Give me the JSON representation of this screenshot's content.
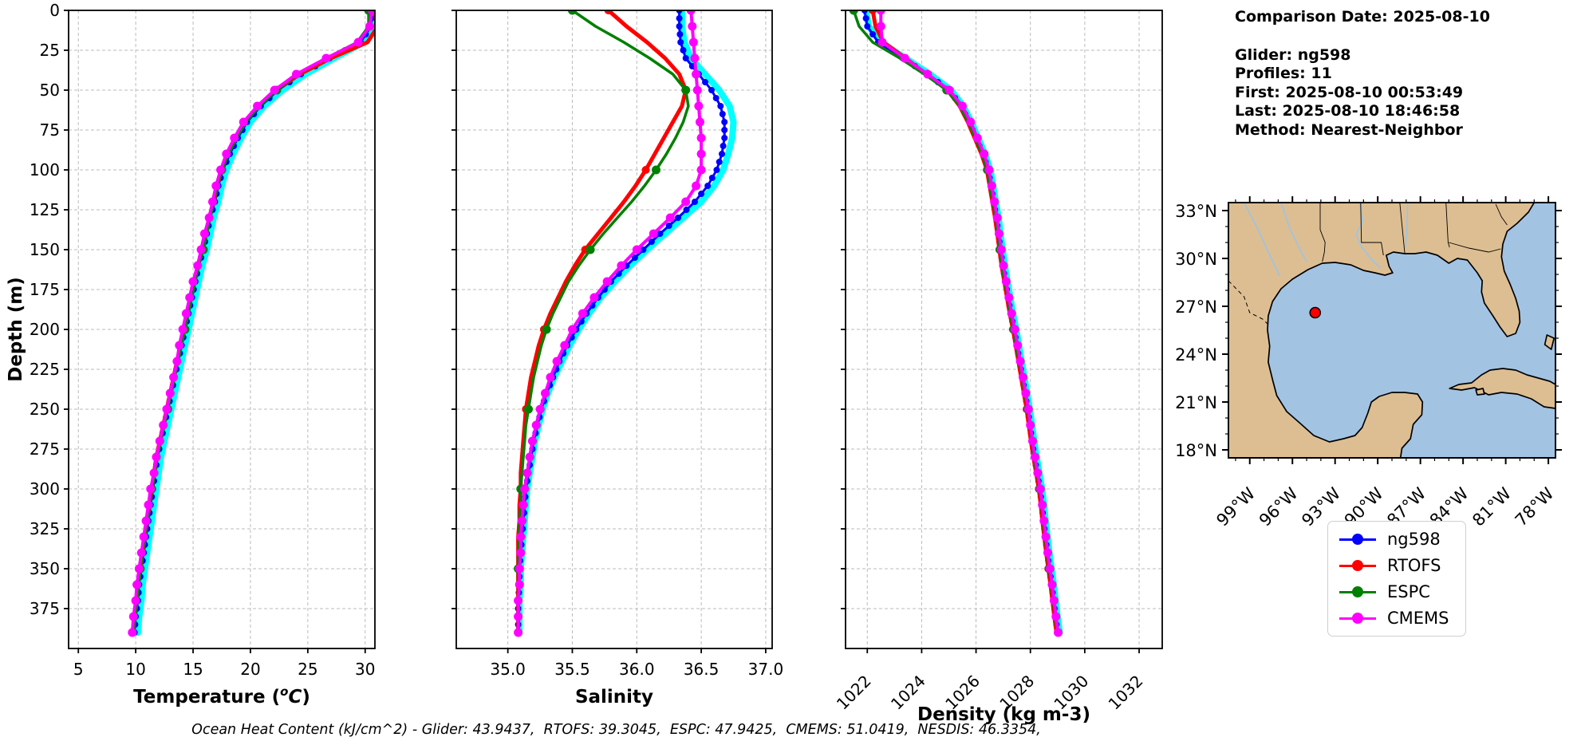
{
  "info_panel": {
    "date_line": "Comparison Date: 2025-08-10",
    "lines": [
      "Glider: ng598",
      "Profiles: 11",
      "First: 2025-08-10 00:53:49",
      "Last: 2025-08-10 18:46:58",
      "Method: Nearest-Neighbor"
    ]
  },
  "footer": {
    "ohc_line": "Ocean Heat Content (kJ/cm^2) - Glider: 43.9437,  RTOFS: 39.3045,  ESPC: 47.9425,  CMEMS: 51.0419,  NESDIS: 46.3354,"
  },
  "legend": {
    "items": [
      {
        "label": "ng598",
        "color": "#0000ff"
      },
      {
        "label": "RTOFS",
        "color": "#ff0000"
      },
      {
        "label": "ESPC",
        "color": "#008000"
      },
      {
        "label": "CMEMS",
        "color": "#ff00ff"
      }
    ]
  },
  "map": {
    "land_color": "#DDBE92",
    "ocean_color": "#A3C3E3",
    "coast_color": "#000000",
    "river_color": "#99C4E8",
    "extent": {
      "lon_min": -100.5,
      "lon_max": -77.5,
      "lat_min": 17.5,
      "lat_max": 33.5
    },
    "lat_ticks": [
      {
        "value": 33,
        "label": "33°N"
      },
      {
        "value": 30,
        "label": "30°N"
      },
      {
        "value": 27,
        "label": "27°N"
      },
      {
        "value": 24,
        "label": "24°N"
      },
      {
        "value": 21,
        "label": "21°N"
      },
      {
        "value": 18,
        "label": "18°N"
      }
    ],
    "lon_ticks": [
      {
        "value": -99,
        "label": "99°W"
      },
      {
        "value": -96,
        "label": "96°W"
      },
      {
        "value": -93,
        "label": "93°W"
      },
      {
        "value": -90,
        "label": "90°W"
      },
      {
        "value": -87,
        "label": "87°W"
      },
      {
        "value": -84,
        "label": "84°W"
      },
      {
        "value": -81,
        "label": "81°W"
      },
      {
        "value": -78,
        "label": "78°W"
      }
    ],
    "marker": {
      "lon": -94.4,
      "lat": 26.6,
      "color": "#ff0000",
      "edge_color": "#000000"
    }
  },
  "chart_data": {
    "type": "line",
    "orientation": "vertical-profile",
    "ylabel": "Depth (m)",
    "ylim": [
      0,
      400
    ],
    "yticks": [
      0,
      25,
      50,
      75,
      100,
      125,
      150,
      175,
      200,
      225,
      250,
      275,
      300,
      325,
      350,
      375
    ],
    "grid": "dashed",
    "depths": [
      0,
      10,
      20,
      30,
      40,
      50,
      60,
      70,
      80,
      90,
      100,
      110,
      120,
      130,
      140,
      150,
      160,
      170,
      180,
      190,
      200,
      210,
      220,
      230,
      240,
      250,
      260,
      270,
      280,
      290,
      300,
      310,
      320,
      330,
      340,
      350,
      360,
      370,
      380,
      390
    ],
    "panels": [
      {
        "name": "temperature",
        "xlabel": "Temperature (C)",
        "xlabel_parts": {
          "pre": "Temperature (",
          "sup": "o",
          "it": "C",
          "post": ")"
        },
        "xlim": [
          4.15,
          30.85
        ],
        "xticks": [
          5,
          10,
          15,
          20,
          25,
          30
        ],
        "xtick_labels": [
          "5",
          "10",
          "15",
          "20",
          "25",
          "30"
        ],
        "rotate_xticklabels": false,
        "series": [
          {
            "name": "glider-profiles",
            "color": "#00ffff",
            "values": [
              30.7,
              30.6,
              29.9,
              27.3,
              24.8,
              22.8,
              21.2,
              20.0,
              19.2,
              18.5,
              17.9,
              17.5,
              17.2,
              16.8,
              16.5,
              16.2,
              15.8,
              15.5,
              15.2,
              14.9,
              14.6,
              14.3,
              14.0,
              13.7,
              13.4,
              13.1,
              12.8,
              12.5,
              12.2,
              12.0,
              11.8,
              11.6,
              11.4,
              11.2,
              11.0,
              10.8,
              10.6,
              10.5,
              10.3,
              10.2
            ]
          },
          {
            "name": "ng598",
            "color": "#0000ff",
            "values": [
              30.6,
              30.5,
              29.6,
              26.9,
              24.4,
              22.4,
              20.9,
              19.7,
              18.9,
              18.2,
              17.6,
              17.2,
              16.9,
              16.5,
              16.2,
              15.9,
              15.5,
              15.2,
              14.9,
              14.6,
              14.3,
              14.0,
              13.7,
              13.4,
              13.1,
              12.8,
              12.5,
              12.2,
              11.9,
              11.7,
              11.5,
              11.3,
              11.1,
              10.9,
              10.7,
              10.5,
              10.3,
              10.2,
              10.0,
              9.9
            ]
          },
          {
            "name": "RTOFS",
            "color": "#ff0000",
            "values": [
              30.8,
              31.1,
              30.2,
              27.0,
              24.3,
              22.2,
              20.7,
              19.5,
              18.7,
              18.0,
              17.5,
              17.1,
              16.8,
              16.4,
              16.1,
              15.8,
              15.4,
              15.1,
              14.8,
              14.5,
              14.2,
              13.9,
              13.6,
              13.3,
              13.0,
              12.7,
              12.4,
              12.1,
              11.8,
              11.6,
              11.4,
              11.2,
              11.0,
              10.8,
              10.6,
              10.4,
              10.2,
              10.1,
              9.9,
              9.8
            ]
          },
          {
            "name": "ESPC",
            "color": "#008000",
            "values": [
              30.3,
              30.3,
              29.3,
              26.6,
              24.1,
              22.3,
              20.8,
              19.6,
              18.8,
              18.1,
              17.5,
              17.1,
              16.8,
              16.5,
              16.2,
              15.9,
              15.5,
              15.2,
              14.9,
              14.6,
              14.3,
              14.0,
              13.7,
              13.4,
              13.1,
              12.8,
              12.5,
              12.2,
              11.9,
              11.7,
              11.4,
              11.2,
              11.0,
              10.8,
              10.6,
              10.4,
              10.3,
              10.1,
              10.0,
              9.8
            ]
          },
          {
            "name": "CMEMS",
            "color": "#ff00ff",
            "values": [
              30.6,
              30.4,
              29.4,
              26.6,
              24.0,
              22.1,
              20.6,
              19.4,
              18.6,
              17.9,
              17.4,
              17.0,
              16.7,
              16.4,
              16.0,
              15.7,
              15.4,
              15.0,
              14.7,
              14.4,
              14.1,
              13.8,
              13.6,
              13.3,
              13.0,
              12.7,
              12.4,
              12.1,
              11.8,
              11.6,
              11.3,
              11.1,
              10.9,
              10.7,
              10.5,
              10.3,
              10.1,
              10.0,
              9.8,
              9.7
            ]
          }
        ]
      },
      {
        "name": "salinity",
        "xlabel": "Salinity",
        "xlim": [
          34.6,
          37.05
        ],
        "xticks": [
          35.0,
          35.5,
          36.0,
          36.5,
          37.0
        ],
        "xtick_labels": [
          "35.0",
          "35.5",
          "36.0",
          "36.5",
          "37.0"
        ],
        "rotate_xticklabels": false,
        "series": [
          {
            "name": "glider-profiles",
            "color": "#00ffff",
            "values": [
              36.35,
              36.35,
              36.37,
              36.42,
              36.53,
              36.64,
              36.72,
              36.75,
              36.74,
              36.71,
              36.67,
              36.6,
              36.5,
              36.36,
              36.22,
              36.08,
              35.95,
              35.83,
              35.72,
              35.63,
              35.55,
              35.48,
              35.42,
              35.36,
              35.31,
              35.27,
              35.24,
              35.21,
              35.19,
              35.17,
              35.15,
              35.14,
              35.13,
              35.12,
              35.11,
              35.1,
              35.1,
              35.09,
              35.09,
              35.09
            ]
          },
          {
            "name": "ng598",
            "color": "#0000ff",
            "values": [
              36.33,
              36.33,
              36.34,
              36.38,
              36.48,
              36.58,
              36.65,
              36.68,
              36.68,
              36.66,
              36.62,
              36.55,
              36.45,
              36.32,
              36.18,
              36.05,
              35.92,
              35.8,
              35.7,
              35.61,
              35.53,
              35.46,
              35.4,
              35.35,
              35.3,
              35.26,
              35.23,
              35.2,
              35.18,
              35.16,
              35.14,
              35.13,
              35.12,
              35.11,
              35.1,
              35.09,
              35.09,
              35.08,
              35.08,
              35.08
            ]
          },
          {
            "name": "RTOFS",
            "color": "#ff0000",
            "values": [
              35.78,
              35.92,
              36.08,
              36.22,
              36.33,
              36.38,
              36.35,
              36.28,
              36.21,
              36.14,
              36.07,
              35.99,
              35.9,
              35.8,
              35.7,
              35.6,
              35.52,
              35.45,
              35.39,
              35.33,
              35.28,
              35.24,
              35.21,
              35.18,
              35.16,
              35.14,
              35.13,
              35.12,
              35.11,
              35.1,
              35.1,
              35.09,
              35.09,
              35.08,
              35.08,
              35.08,
              35.08,
              35.08,
              35.08,
              35.08
            ]
          },
          {
            "name": "ESPC",
            "color": "#008000",
            "values": [
              35.5,
              35.68,
              35.9,
              36.1,
              36.28,
              36.38,
              36.4,
              36.36,
              36.3,
              36.23,
              36.15,
              36.06,
              35.96,
              35.85,
              35.74,
              35.64,
              35.55,
              35.47,
              35.41,
              35.35,
              35.3,
              35.26,
              35.23,
              35.2,
              35.18,
              35.16,
              35.14,
              35.13,
              35.12,
              35.11,
              35.1,
              35.1,
              35.09,
              35.09,
              35.08,
              35.08,
              35.08,
              35.08,
              35.08,
              35.08
            ]
          },
          {
            "name": "CMEMS",
            "color": "#ff00ff",
            "values": [
              36.42,
              36.43,
              36.44,
              36.45,
              36.46,
              36.47,
              36.48,
              36.49,
              36.5,
              36.5,
              36.5,
              36.46,
              36.38,
              36.26,
              36.13,
              36.0,
              35.88,
              35.77,
              35.67,
              35.58,
              35.5,
              35.44,
              35.38,
              35.33,
              35.29,
              35.25,
              35.22,
              35.19,
              35.17,
              35.15,
              35.13,
              35.12,
              35.11,
              35.1,
              35.1,
              35.09,
              35.09,
              35.08,
              35.08,
              35.08
            ]
          }
        ]
      },
      {
        "name": "density",
        "xlabel": "Density (kg m-3)",
        "xlim": [
          1021.2,
          1032.85
        ],
        "xticks": [
          1022,
          1024,
          1026,
          1028,
          1030,
          1032
        ],
        "xtick_labels": [
          "1022",
          "1024",
          "1026",
          "1028",
          "1030",
          "1032"
        ],
        "rotate_xticklabels": true,
        "series": [
          {
            "name": "glider-profiles",
            "color": "#00ffff",
            "values": [
              1021.95,
              1022.05,
              1022.5,
              1023.4,
              1024.3,
              1025.08,
              1025.53,
              1025.83,
              1026.08,
              1026.33,
              1026.53,
              1026.63,
              1026.73,
              1026.83,
              1026.9,
              1026.98,
              1027.06,
              1027.16,
              1027.26,
              1027.36,
              1027.48,
              1027.58,
              1027.68,
              1027.78,
              1027.88,
              1027.98,
              1028.06,
              1028.14,
              1028.23,
              1028.33,
              1028.43,
              1028.5,
              1028.56,
              1028.63,
              1028.7,
              1028.78,
              1028.86,
              1028.93,
              1029.0,
              1029.08
            ]
          },
          {
            "name": "ng598",
            "color": "#0000ff",
            "values": [
              1021.9,
              1022.0,
              1022.4,
              1023.3,
              1024.2,
              1025.0,
              1025.45,
              1025.75,
              1026.0,
              1026.25,
              1026.45,
              1026.55,
              1026.65,
              1026.75,
              1026.82,
              1026.9,
              1026.98,
              1027.08,
              1027.18,
              1027.28,
              1027.4,
              1027.5,
              1027.6,
              1027.7,
              1027.8,
              1027.9,
              1027.98,
              1028.06,
              1028.15,
              1028.25,
              1028.35,
              1028.42,
              1028.48,
              1028.55,
              1028.62,
              1028.7,
              1028.78,
              1028.85,
              1028.92,
              1029.0
            ]
          },
          {
            "name": "RTOFS",
            "color": "#ff0000",
            "values": [
              1022.2,
              1022.3,
              1022.6,
              1023.4,
              1024.18,
              1024.95,
              1025.4,
              1025.7,
              1025.95,
              1026.2,
              1026.4,
              1026.5,
              1026.6,
              1026.7,
              1026.78,
              1026.86,
              1026.94,
              1027.04,
              1027.14,
              1027.24,
              1027.36,
              1027.46,
              1027.56,
              1027.66,
              1027.76,
              1027.86,
              1027.94,
              1028.02,
              1028.11,
              1028.21,
              1028.31,
              1028.38,
              1028.44,
              1028.51,
              1028.58,
              1028.66,
              1028.74,
              1028.81,
              1028.88,
              1028.96
            ]
          },
          {
            "name": "ESPC",
            "color": "#008000",
            "values": [
              1021.5,
              1021.7,
              1022.2,
              1023.2,
              1024.1,
              1024.92,
              1025.4,
              1025.72,
              1025.98,
              1026.22,
              1026.42,
              1026.52,
              1026.62,
              1026.73,
              1026.8,
              1026.88,
              1026.96,
              1027.06,
              1027.16,
              1027.26,
              1027.38,
              1027.48,
              1027.58,
              1027.7,
              1027.8,
              1027.9,
              1027.97,
              1028.05,
              1028.14,
              1028.24,
              1028.34,
              1028.41,
              1028.47,
              1028.54,
              1028.61,
              1028.69,
              1028.77,
              1028.84,
              1028.91,
              1028.99
            ]
          },
          {
            "name": "CMEMS",
            "color": "#ff00ff",
            "values": [
              1022.5,
              1022.5,
              1022.55,
              1023.38,
              1024.22,
              1025.02,
              1025.5,
              1025.8,
              1026.05,
              1026.3,
              1026.48,
              1026.58,
              1026.68,
              1026.78,
              1026.85,
              1026.93,
              1027.01,
              1027.11,
              1027.21,
              1027.31,
              1027.43,
              1027.53,
              1027.63,
              1027.73,
              1027.83,
              1027.93,
              1028.0,
              1028.08,
              1028.17,
              1028.27,
              1028.37,
              1028.44,
              1028.5,
              1028.57,
              1028.64,
              1028.72,
              1028.8,
              1028.87,
              1028.94,
              1029.02
            ]
          }
        ]
      }
    ]
  }
}
